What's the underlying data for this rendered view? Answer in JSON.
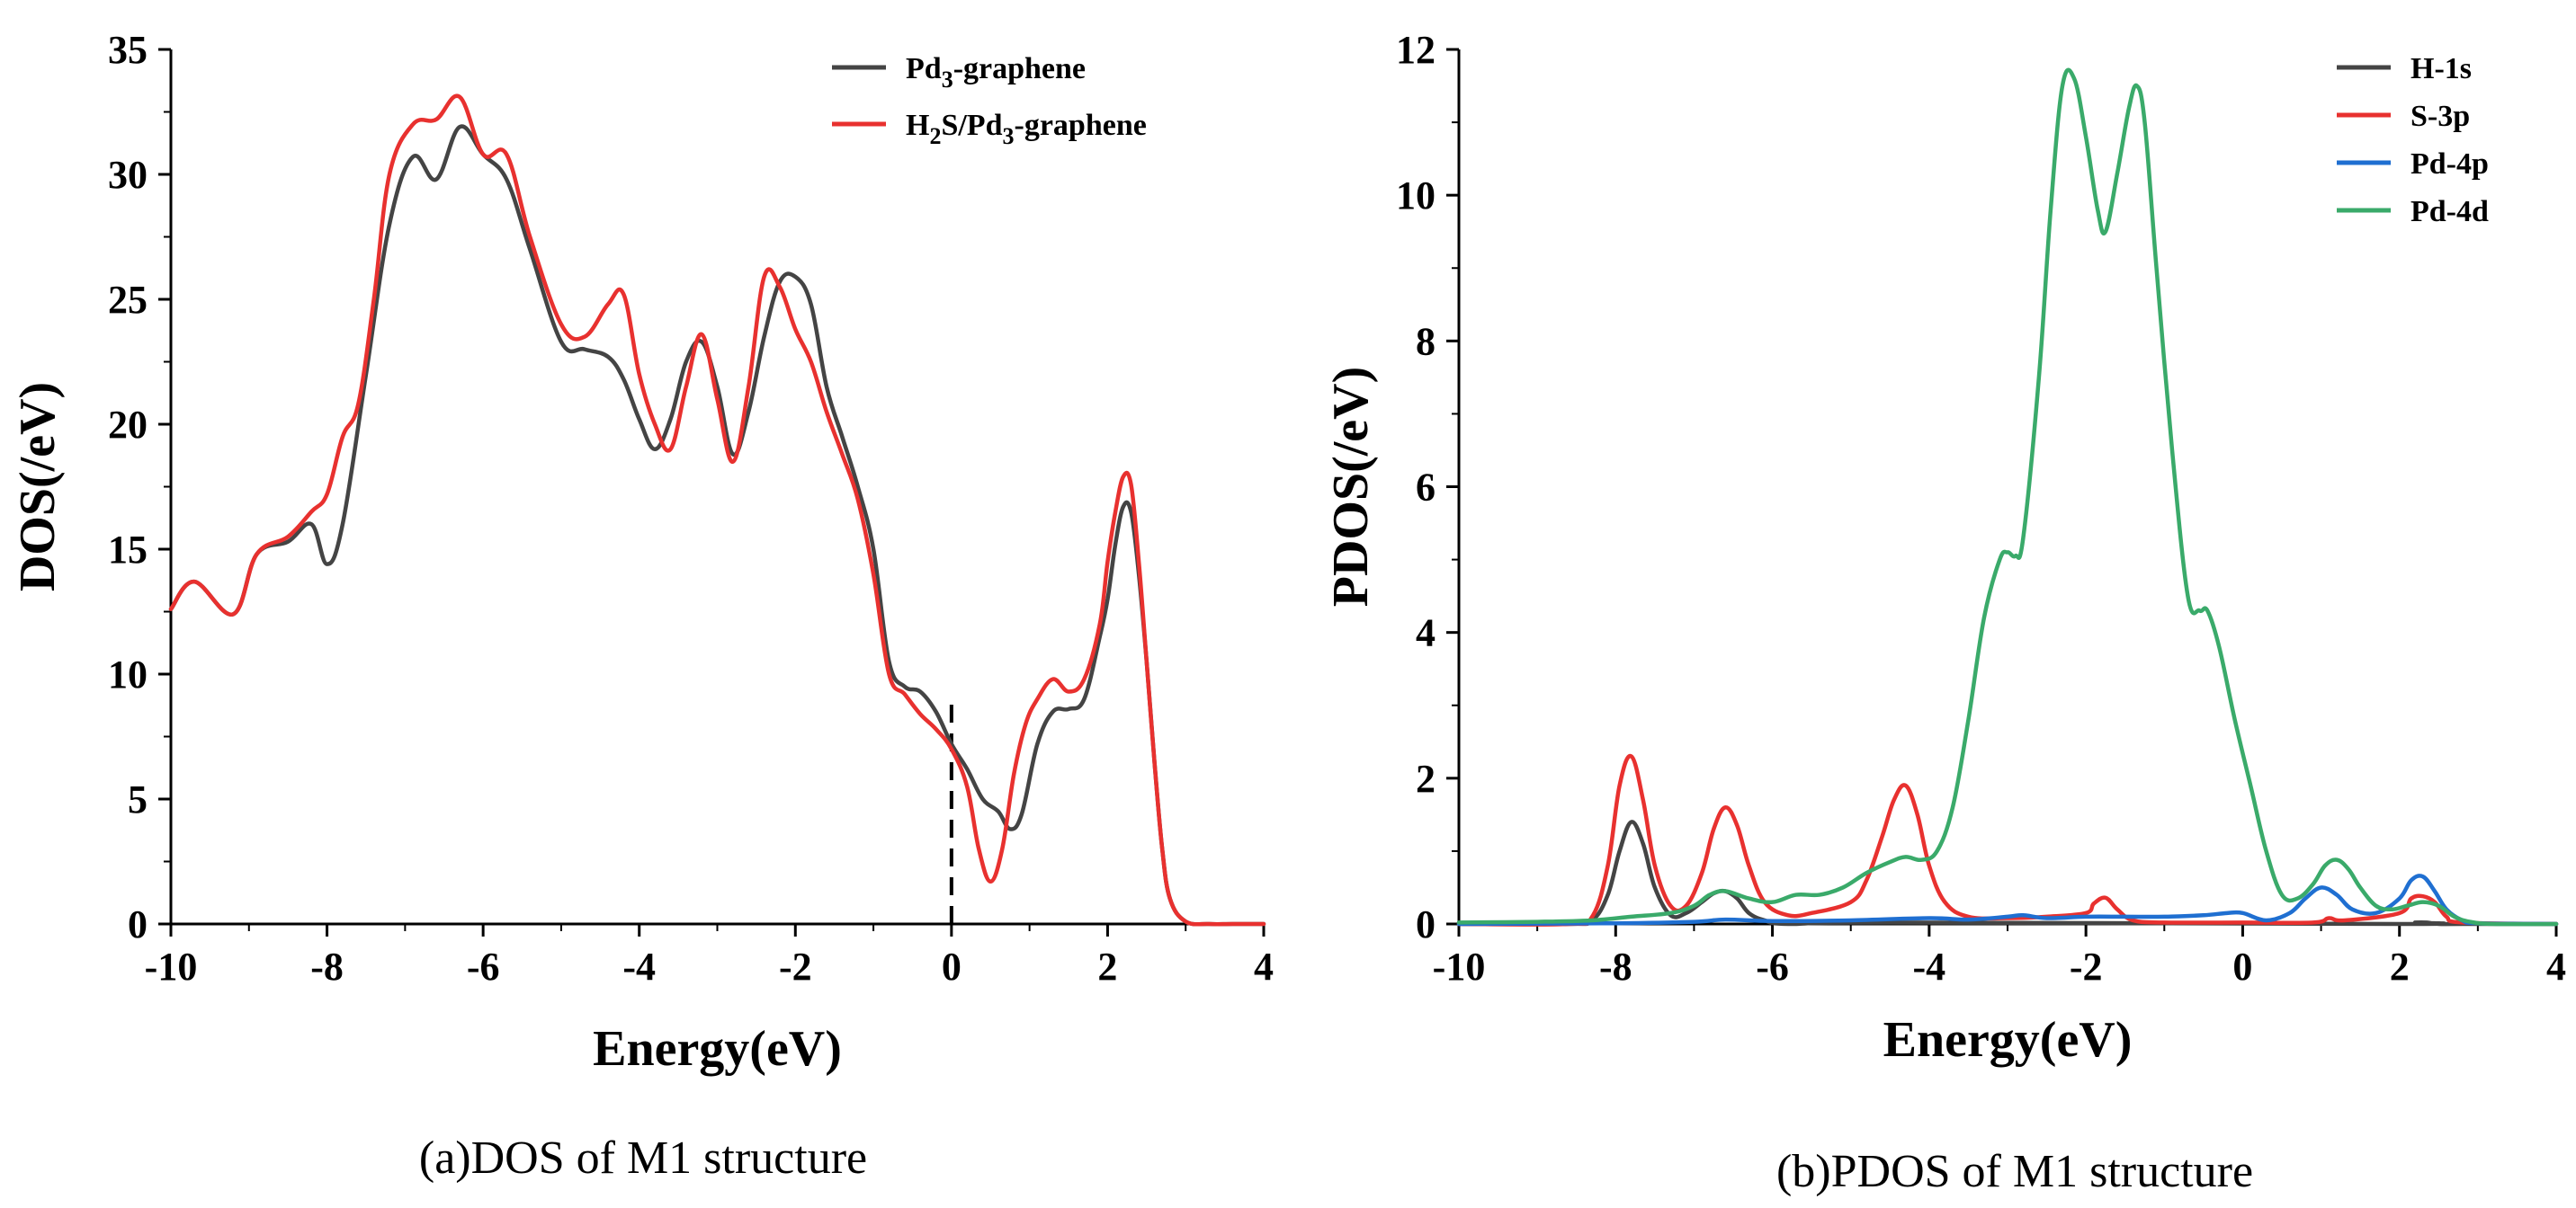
{
  "colors": {
    "pd3_graphene": "#444444",
    "h2s_pd3_graphene": "#e8312f",
    "h1s": "#444444",
    "s3p": "#e8312f",
    "pd4p": "#1f6fd1",
    "pd4d": "#3aaa6a"
  },
  "chart_data": [
    {
      "type": "line",
      "caption": "(a)DOS of M1 structure",
      "xlabel": "Energy(eV)",
      "ylabel": "DOS(/eV)",
      "xlim": [
        -10,
        4
      ],
      "ylim": [
        0,
        35
      ],
      "xticks": [
        -10,
        -8,
        -6,
        -4,
        -2,
        0,
        2,
        4
      ],
      "yticks": [
        0,
        5,
        10,
        15,
        20,
        25,
        30,
        35
      ],
      "xtick_labels": [
        "-10",
        "-8",
        "-6",
        "-4",
        "-2",
        "0",
        "2",
        "4"
      ],
      "ytick_labels": [
        "0",
        "5",
        "10",
        "15",
        "20",
        "25",
        "30",
        "35"
      ],
      "fermi_level": 0,
      "legend_position": "top-right",
      "series": [
        {
          "name": "Pd3-graphene",
          "legend_main": "Pd",
          "legend_sub": "3",
          "legend_tail": "-graphene",
          "color_key": "pd3_graphene",
          "x": [
            -10,
            -9.7,
            -9.2,
            -8.9,
            -8.5,
            -8.2,
            -8.0,
            -7.8,
            -7.5,
            -7.2,
            -6.9,
            -6.6,
            -6.3,
            -6.0,
            -5.7,
            -5.4,
            -5.0,
            -4.7,
            -4.4,
            -4.2,
            -4.0,
            -3.8,
            -3.6,
            -3.4,
            -3.2,
            -3.0,
            -2.8,
            -2.6,
            -2.4,
            -2.2,
            -2.0,
            -1.8,
            -1.6,
            -1.4,
            -1.2,
            -1.0,
            -0.8,
            -0.6,
            -0.4,
            -0.2,
            0.0,
            0.2,
            0.4,
            0.6,
            0.75,
            0.9,
            1.1,
            1.3,
            1.5,
            1.7,
            1.9,
            2.0,
            2.1,
            2.2,
            2.3,
            2.4,
            2.5,
            2.6,
            2.7,
            2.8,
            3.0,
            3.3,
            3.6,
            4.0
          ],
          "values": [
            12.6,
            13.7,
            12.4,
            14.8,
            15.3,
            16.0,
            14.4,
            16.0,
            22.0,
            28.0,
            30.7,
            29.8,
            31.9,
            30.8,
            29.8,
            27.0,
            23.3,
            23.0,
            22.7,
            21.8,
            20.2,
            19.0,
            20.2,
            22.5,
            23.3,
            21.5,
            18.8,
            20.5,
            23.5,
            25.7,
            25.9,
            24.8,
            21.5,
            19.5,
            17.5,
            15.0,
            10.5,
            9.5,
            9.3,
            8.5,
            7.2,
            6.2,
            5.0,
            4.5,
            3.8,
            4.4,
            7.2,
            8.5,
            8.6,
            9.0,
            11.5,
            13.0,
            15.2,
            16.7,
            16.5,
            14.0,
            10.5,
            6.5,
            3.0,
            1.0,
            0.1,
            0,
            0,
            0
          ]
        },
        {
          "name": "H2S/Pd3-graphene",
          "legend_main": "H",
          "legend_sub": "2",
          "legend_mid": "S/Pd",
          "legend_sub2": "3",
          "legend_tail": "-graphene",
          "color_key": "h2s_pd3_graphene",
          "x": [
            -10,
            -9.7,
            -9.2,
            -8.9,
            -8.5,
            -8.2,
            -8.0,
            -7.8,
            -7.6,
            -7.4,
            -7.2,
            -6.9,
            -6.6,
            -6.3,
            -6.0,
            -5.7,
            -5.4,
            -5.0,
            -4.7,
            -4.4,
            -4.2,
            -4.0,
            -3.8,
            -3.6,
            -3.4,
            -3.2,
            -3.0,
            -2.8,
            -2.6,
            -2.4,
            -2.2,
            -2.0,
            -1.8,
            -1.6,
            -1.4,
            -1.2,
            -1.0,
            -0.8,
            -0.6,
            -0.4,
            -0.2,
            0.0,
            0.2,
            0.35,
            0.5,
            0.65,
            0.8,
            0.95,
            1.1,
            1.3,
            1.5,
            1.7,
            1.9,
            2.0,
            2.1,
            2.2,
            2.3,
            2.4,
            2.5,
            2.6,
            2.7,
            2.8,
            3.0,
            3.3,
            3.6,
            4.0
          ],
          "values": [
            12.6,
            13.7,
            12.4,
            14.8,
            15.5,
            16.5,
            17.2,
            19.5,
            20.8,
            25.0,
            30.0,
            32.0,
            32.2,
            33.1,
            30.8,
            30.8,
            27.5,
            24.0,
            23.5,
            24.8,
            25.2,
            22.0,
            20.0,
            19.0,
            21.5,
            23.6,
            21.0,
            18.5,
            21.5,
            25.9,
            25.5,
            23.8,
            22.5,
            20.5,
            18.8,
            17.0,
            14.0,
            10.0,
            9.2,
            8.4,
            7.8,
            7.0,
            5.5,
            3.0,
            1.7,
            3.0,
            6.0,
            8.0,
            9.0,
            9.8,
            9.3,
            9.8,
            12.0,
            14.5,
            16.5,
            17.9,
            17.6,
            14.5,
            10.5,
            6.5,
            3.0,
            1.0,
            0.1,
            0,
            0,
            0
          ]
        }
      ]
    },
    {
      "type": "line",
      "caption": "(b)PDOS of M1 structure",
      "xlabel": "Energy(eV)",
      "ylabel": "PDOS(/eV)",
      "xlim": [
        -10,
        4
      ],
      "ylim": [
        0,
        12
      ],
      "xticks": [
        -10,
        -8,
        -6,
        -4,
        -2,
        0,
        2,
        4
      ],
      "yticks": [
        0,
        2,
        4,
        6,
        8,
        10,
        12
      ],
      "xtick_labels": [
        "-10",
        "-8",
        "-6",
        "-4",
        "-2",
        "0",
        "2",
        "4"
      ],
      "ytick_labels": [
        "0",
        "2",
        "4",
        "6",
        "8",
        "10",
        "12"
      ],
      "legend_position": "top-right",
      "series": [
        {
          "name": "H-1s",
          "color_key": "h1s",
          "x": [
            -10,
            -8.6,
            -8.3,
            -8.1,
            -7.95,
            -7.8,
            -7.65,
            -7.5,
            -7.3,
            -7.1,
            -6.9,
            -6.75,
            -6.6,
            -6.45,
            -6.3,
            -6.1,
            -5.8,
            -4.5,
            2.0,
            2.2,
            2.35,
            2.5,
            2.8,
            4.0
          ],
          "values": [
            0,
            0,
            0.05,
            0.4,
            1.0,
            1.4,
            1.1,
            0.5,
            0.12,
            0.15,
            0.3,
            0.42,
            0.45,
            0.35,
            0.15,
            0.05,
            0,
            0.02,
            0,
            0.02,
            0.02,
            0,
            0,
            0
          ]
        },
        {
          "name": "S-3p",
          "color_key": "s3p",
          "x": [
            -10,
            -8.6,
            -8.3,
            -8.1,
            -7.95,
            -7.8,
            -7.65,
            -7.5,
            -7.3,
            -7.1,
            -6.9,
            -6.75,
            -6.6,
            -6.45,
            -6.3,
            -6.1,
            -5.8,
            -5.5,
            -5.0,
            -4.8,
            -4.6,
            -4.45,
            -4.3,
            -4.15,
            -4.0,
            -3.8,
            -3.5,
            -3.0,
            -2.5,
            -2.0,
            -1.9,
            -1.75,
            -1.6,
            -1.4,
            -1.0,
            0.0,
            0.9,
            1.1,
            1.3,
            2.0,
            2.15,
            2.3,
            2.45,
            2.6,
            2.8,
            4.0
          ],
          "values": [
            0,
            0,
            0.1,
            0.8,
            1.9,
            2.3,
            1.7,
            0.8,
            0.25,
            0.25,
            0.7,
            1.3,
            1.6,
            1.35,
            0.8,
            0.3,
            0.12,
            0.15,
            0.3,
            0.6,
            1.2,
            1.7,
            1.9,
            1.5,
            0.8,
            0.3,
            0.1,
            0.08,
            0.1,
            0.15,
            0.28,
            0.36,
            0.2,
            0.05,
            0.02,
            0.02,
            0.02,
            0.08,
            0.05,
            0.15,
            0.35,
            0.38,
            0.3,
            0.1,
            0.02,
            0
          ]
        },
        {
          "name": "Pd-4p",
          "color_key": "pd4p",
          "x": [
            -10,
            -8.0,
            -7.0,
            -6.6,
            -6.0,
            -5.0,
            -4.0,
            -3.5,
            -3.0,
            -2.8,
            -2.5,
            -2.0,
            -1.5,
            -1.0,
            -0.5,
            -0.2,
            0.0,
            0.3,
            0.6,
            0.8,
            1.0,
            1.2,
            1.4,
            1.7,
            2.0,
            2.15,
            2.3,
            2.45,
            2.6,
            2.8,
            3.0,
            4.0
          ],
          "values": [
            0,
            0.01,
            0.03,
            0.06,
            0.04,
            0.05,
            0.08,
            0.06,
            0.1,
            0.12,
            0.08,
            0.1,
            0.1,
            0.1,
            0.12,
            0.15,
            0.15,
            0.05,
            0.15,
            0.35,
            0.5,
            0.4,
            0.2,
            0.15,
            0.35,
            0.6,
            0.65,
            0.45,
            0.2,
            0.05,
            0.01,
            0
          ]
        },
        {
          "name": "Pd-4d",
          "color_key": "pd4d",
          "x": [
            -10,
            -9.0,
            -8.3,
            -7.8,
            -7.3,
            -7.0,
            -6.8,
            -6.6,
            -6.3,
            -6.0,
            -5.7,
            -5.4,
            -5.1,
            -4.8,
            -4.5,
            -4.3,
            -4.1,
            -3.9,
            -3.7,
            -3.5,
            -3.3,
            -3.1,
            -3.0,
            -2.9,
            -2.8,
            -2.6,
            -2.45,
            -2.3,
            -2.15,
            -2.0,
            -1.85,
            -1.75,
            -1.6,
            -1.45,
            -1.35,
            -1.25,
            -1.1,
            -0.9,
            -0.7,
            -0.55,
            -0.45,
            -0.3,
            -0.1,
            0.1,
            0.3,
            0.5,
            0.7,
            0.9,
            1.05,
            1.2,
            1.35,
            1.5,
            1.7,
            1.9,
            2.1,
            2.3,
            2.5,
            2.7,
            2.9,
            3.2,
            4.0
          ],
          "values": [
            0.02,
            0.03,
            0.05,
            0.1,
            0.15,
            0.25,
            0.4,
            0.45,
            0.35,
            0.3,
            0.4,
            0.4,
            0.5,
            0.7,
            0.85,
            0.92,
            0.88,
            1.0,
            1.6,
            2.8,
            4.2,
            5.0,
            5.1,
            5.05,
            5.3,
            7.5,
            9.8,
            11.5,
            11.6,
            10.8,
            9.8,
            9.5,
            10.3,
            11.2,
            11.5,
            11.0,
            9.0,
            6.5,
            4.5,
            4.3,
            4.3,
            3.8,
            2.8,
            1.9,
            1.0,
            0.4,
            0.35,
            0.55,
            0.8,
            0.88,
            0.75,
            0.5,
            0.25,
            0.2,
            0.25,
            0.3,
            0.25,
            0.1,
            0.03,
            0,
            0
          ]
        }
      ]
    }
  ]
}
